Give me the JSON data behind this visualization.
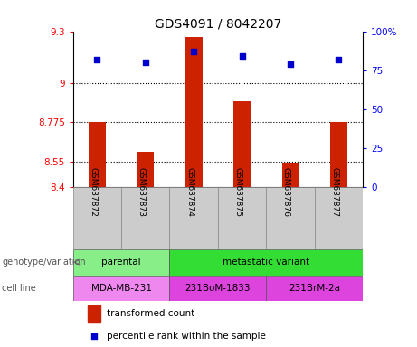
{
  "title": "GDS4091 / 8042207",
  "samples": [
    "GSM637872",
    "GSM637873",
    "GSM637874",
    "GSM637875",
    "GSM637876",
    "GSM637877"
  ],
  "bar_values": [
    8.775,
    8.605,
    9.265,
    8.895,
    8.545,
    8.775
  ],
  "percentile_values": [
    82,
    80,
    87,
    84,
    79,
    82
  ],
  "bar_color": "#cc2200",
  "dot_color": "#0000cc",
  "ylim_left": [
    8.4,
    9.3
  ],
  "yticks_left": [
    8.4,
    8.55,
    8.775,
    9.0,
    9.3
  ],
  "ytick_labels_left": [
    "8.4",
    "8.55",
    "8.775",
    "9",
    "9.3"
  ],
  "ylim_right": [
    0,
    100
  ],
  "yticks_right": [
    0,
    25,
    50,
    75,
    100
  ],
  "ytick_labels_right": [
    "0",
    "25",
    "50",
    "75",
    "100%"
  ],
  "grid_values": [
    9.0,
    8.775,
    8.55
  ],
  "genotype_labels": [
    {
      "text": "parental",
      "cols": [
        0,
        1
      ],
      "color": "#88ee88"
    },
    {
      "text": "metastatic variant",
      "cols": [
        2,
        3,
        4,
        5
      ],
      "color": "#33dd33"
    }
  ],
  "cell_line_labels": [
    {
      "text": "MDA-MB-231",
      "cols": [
        0,
        1
      ],
      "color": "#ee88ee"
    },
    {
      "text": "231BoM-1833",
      "cols": [
        2,
        3
      ],
      "color": "#dd44dd"
    },
    {
      "text": "231BrM-2a",
      "cols": [
        4,
        5
      ],
      "color": "#dd44dd"
    }
  ],
  "row_label_genotype": "genotype/variation",
  "row_label_cell": "cell line",
  "legend_bar": "transformed count",
  "legend_dot": "percentile rank within the sample",
  "background_color": "#ffffff",
  "plot_bg_color": "#ffffff",
  "sample_box_color": "#cccccc"
}
